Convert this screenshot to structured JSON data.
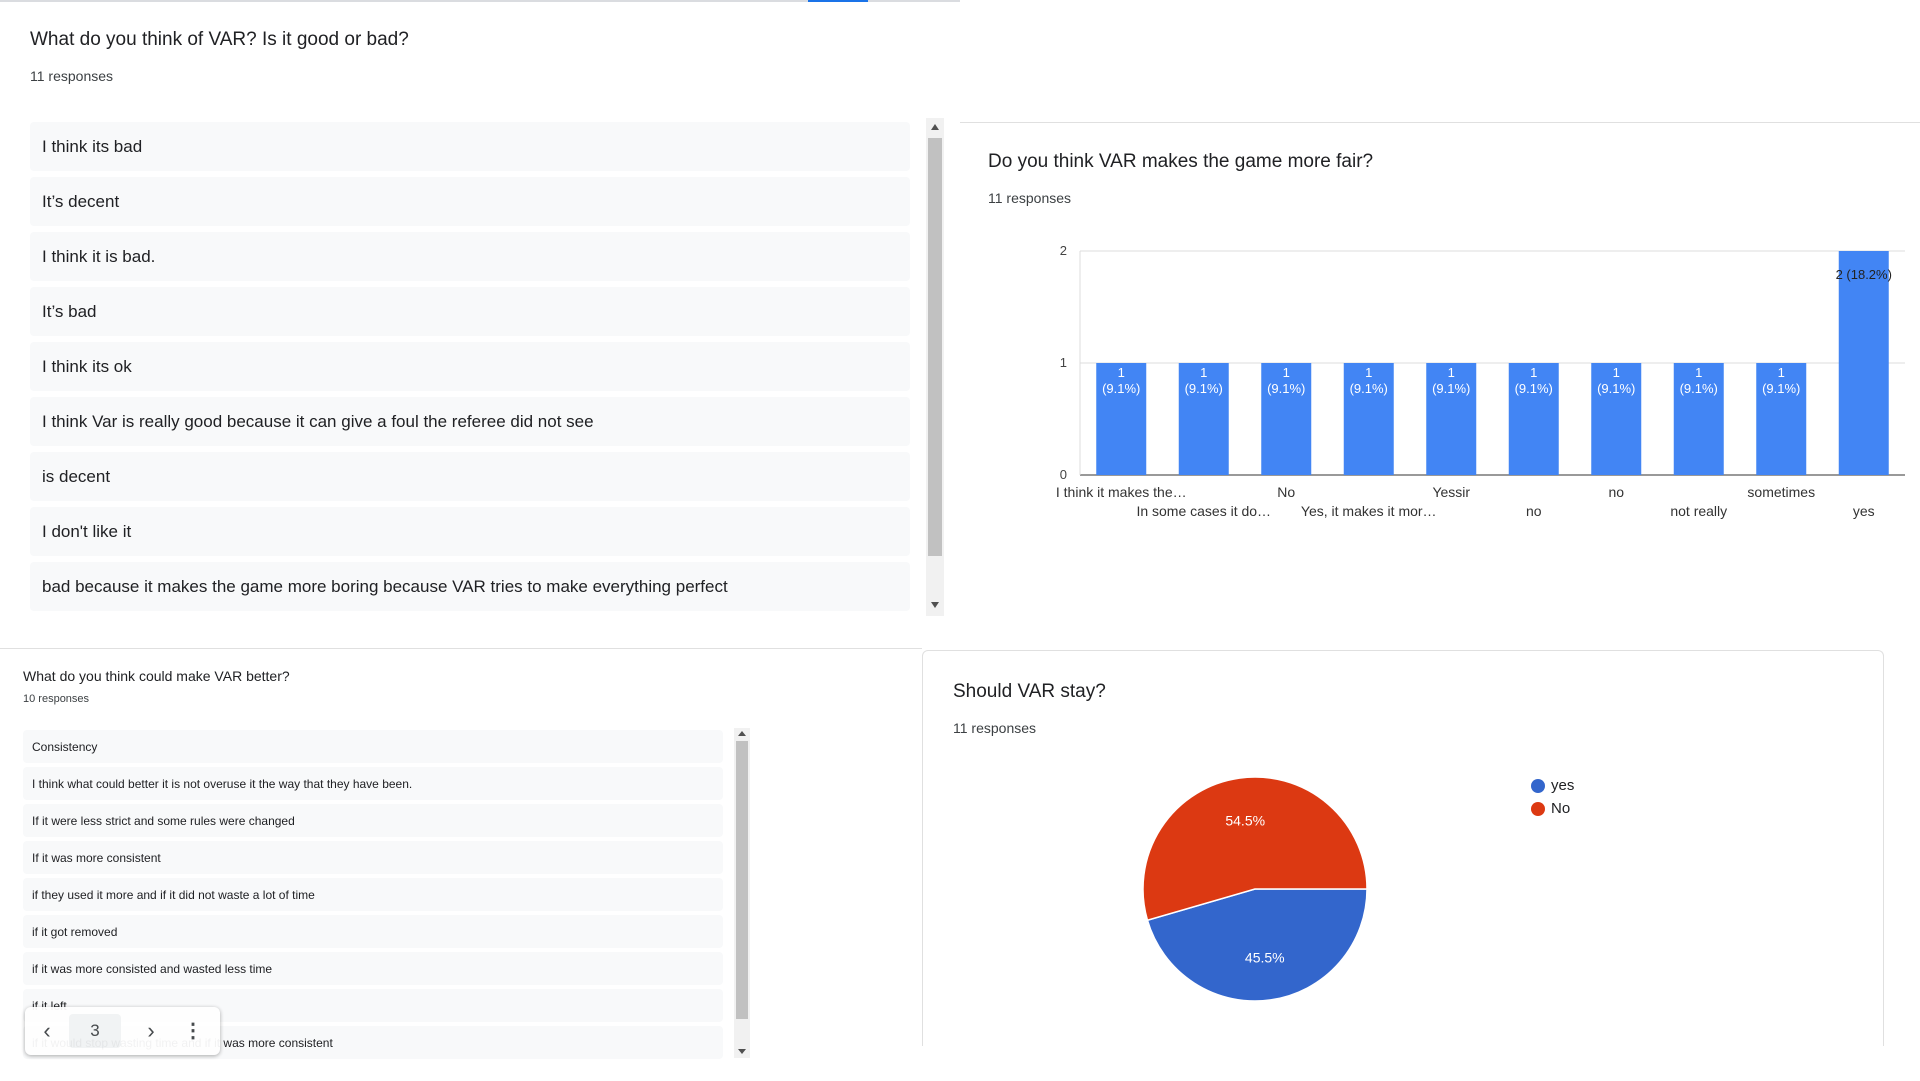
{
  "q1": {
    "title": "What do you think of VAR? Is it good or bad?",
    "count": "11 responses",
    "responses": [
      "I think its bad",
      "It’s decent",
      "I think it is bad.",
      "It’s bad",
      "I think its ok",
      "I think Var is really good because it can give a foul the referee did not see",
      "is decent",
      "I don't like it",
      "bad because it makes the game more boring because VAR tries to make everything perfect"
    ]
  },
  "q2": {
    "title": "Do you think VAR makes the game more fair?",
    "count": "11 responses"
  },
  "q3": {
    "title": "What do you think could make VAR better?",
    "count": "10 responses",
    "responses": [
      "Consistency",
      "I think what could better it is not overuse it the way that they have been.",
      "If it were less strict and some rules were changed",
      "If it was more consistent",
      "if they used it more and if it did not waste a lot of time",
      "if it got removed",
      "if it was more consisted and wasted less time",
      "if it left",
      "if it would stop wasting time and if it was more consistent"
    ],
    "pager": {
      "page": "3"
    }
  },
  "q4": {
    "title": "Should VAR stay?",
    "count": "11 responses"
  },
  "chart_data": [
    {
      "type": "bar",
      "title": "Do you think VAR makes the game more fair?",
      "categories": [
        "I think it makes the…",
        "In some cases it do…",
        "No",
        "Yes, it makes it mor…",
        "Yessir",
        "no",
        "no",
        "not really",
        "sometimes",
        "yes"
      ],
      "values": [
        1,
        1,
        1,
        1,
        1,
        1,
        1,
        1,
        1,
        2
      ],
      "data_labels": [
        [
          "1",
          "(9.1%)"
        ],
        [
          "1",
          "(9.1%)"
        ],
        [
          "1",
          "(9.1%)"
        ],
        [
          "1",
          "(9.1%)"
        ],
        [
          "1",
          "(9.1%)"
        ],
        [
          "1",
          "(9.1%)"
        ],
        [
          "1",
          "(9.1%)"
        ],
        [
          "1",
          "(9.1%)"
        ],
        [
          "1",
          "(9.1%)"
        ],
        [
          "2 (18.2%)"
        ]
      ],
      "yticks": [
        "0",
        "1",
        "2"
      ],
      "ylim": [
        0,
        2
      ],
      "color": "#4285f4"
    },
    {
      "type": "pie",
      "title": "Should VAR stay?",
      "slices": [
        {
          "name": "yes",
          "value": 45.5,
          "label": "45.5%",
          "color": "#3366cc"
        },
        {
          "name": "No",
          "value": 54.5,
          "label": "54.5%",
          "color": "#dc3912"
        }
      ],
      "legend": "right"
    }
  ]
}
